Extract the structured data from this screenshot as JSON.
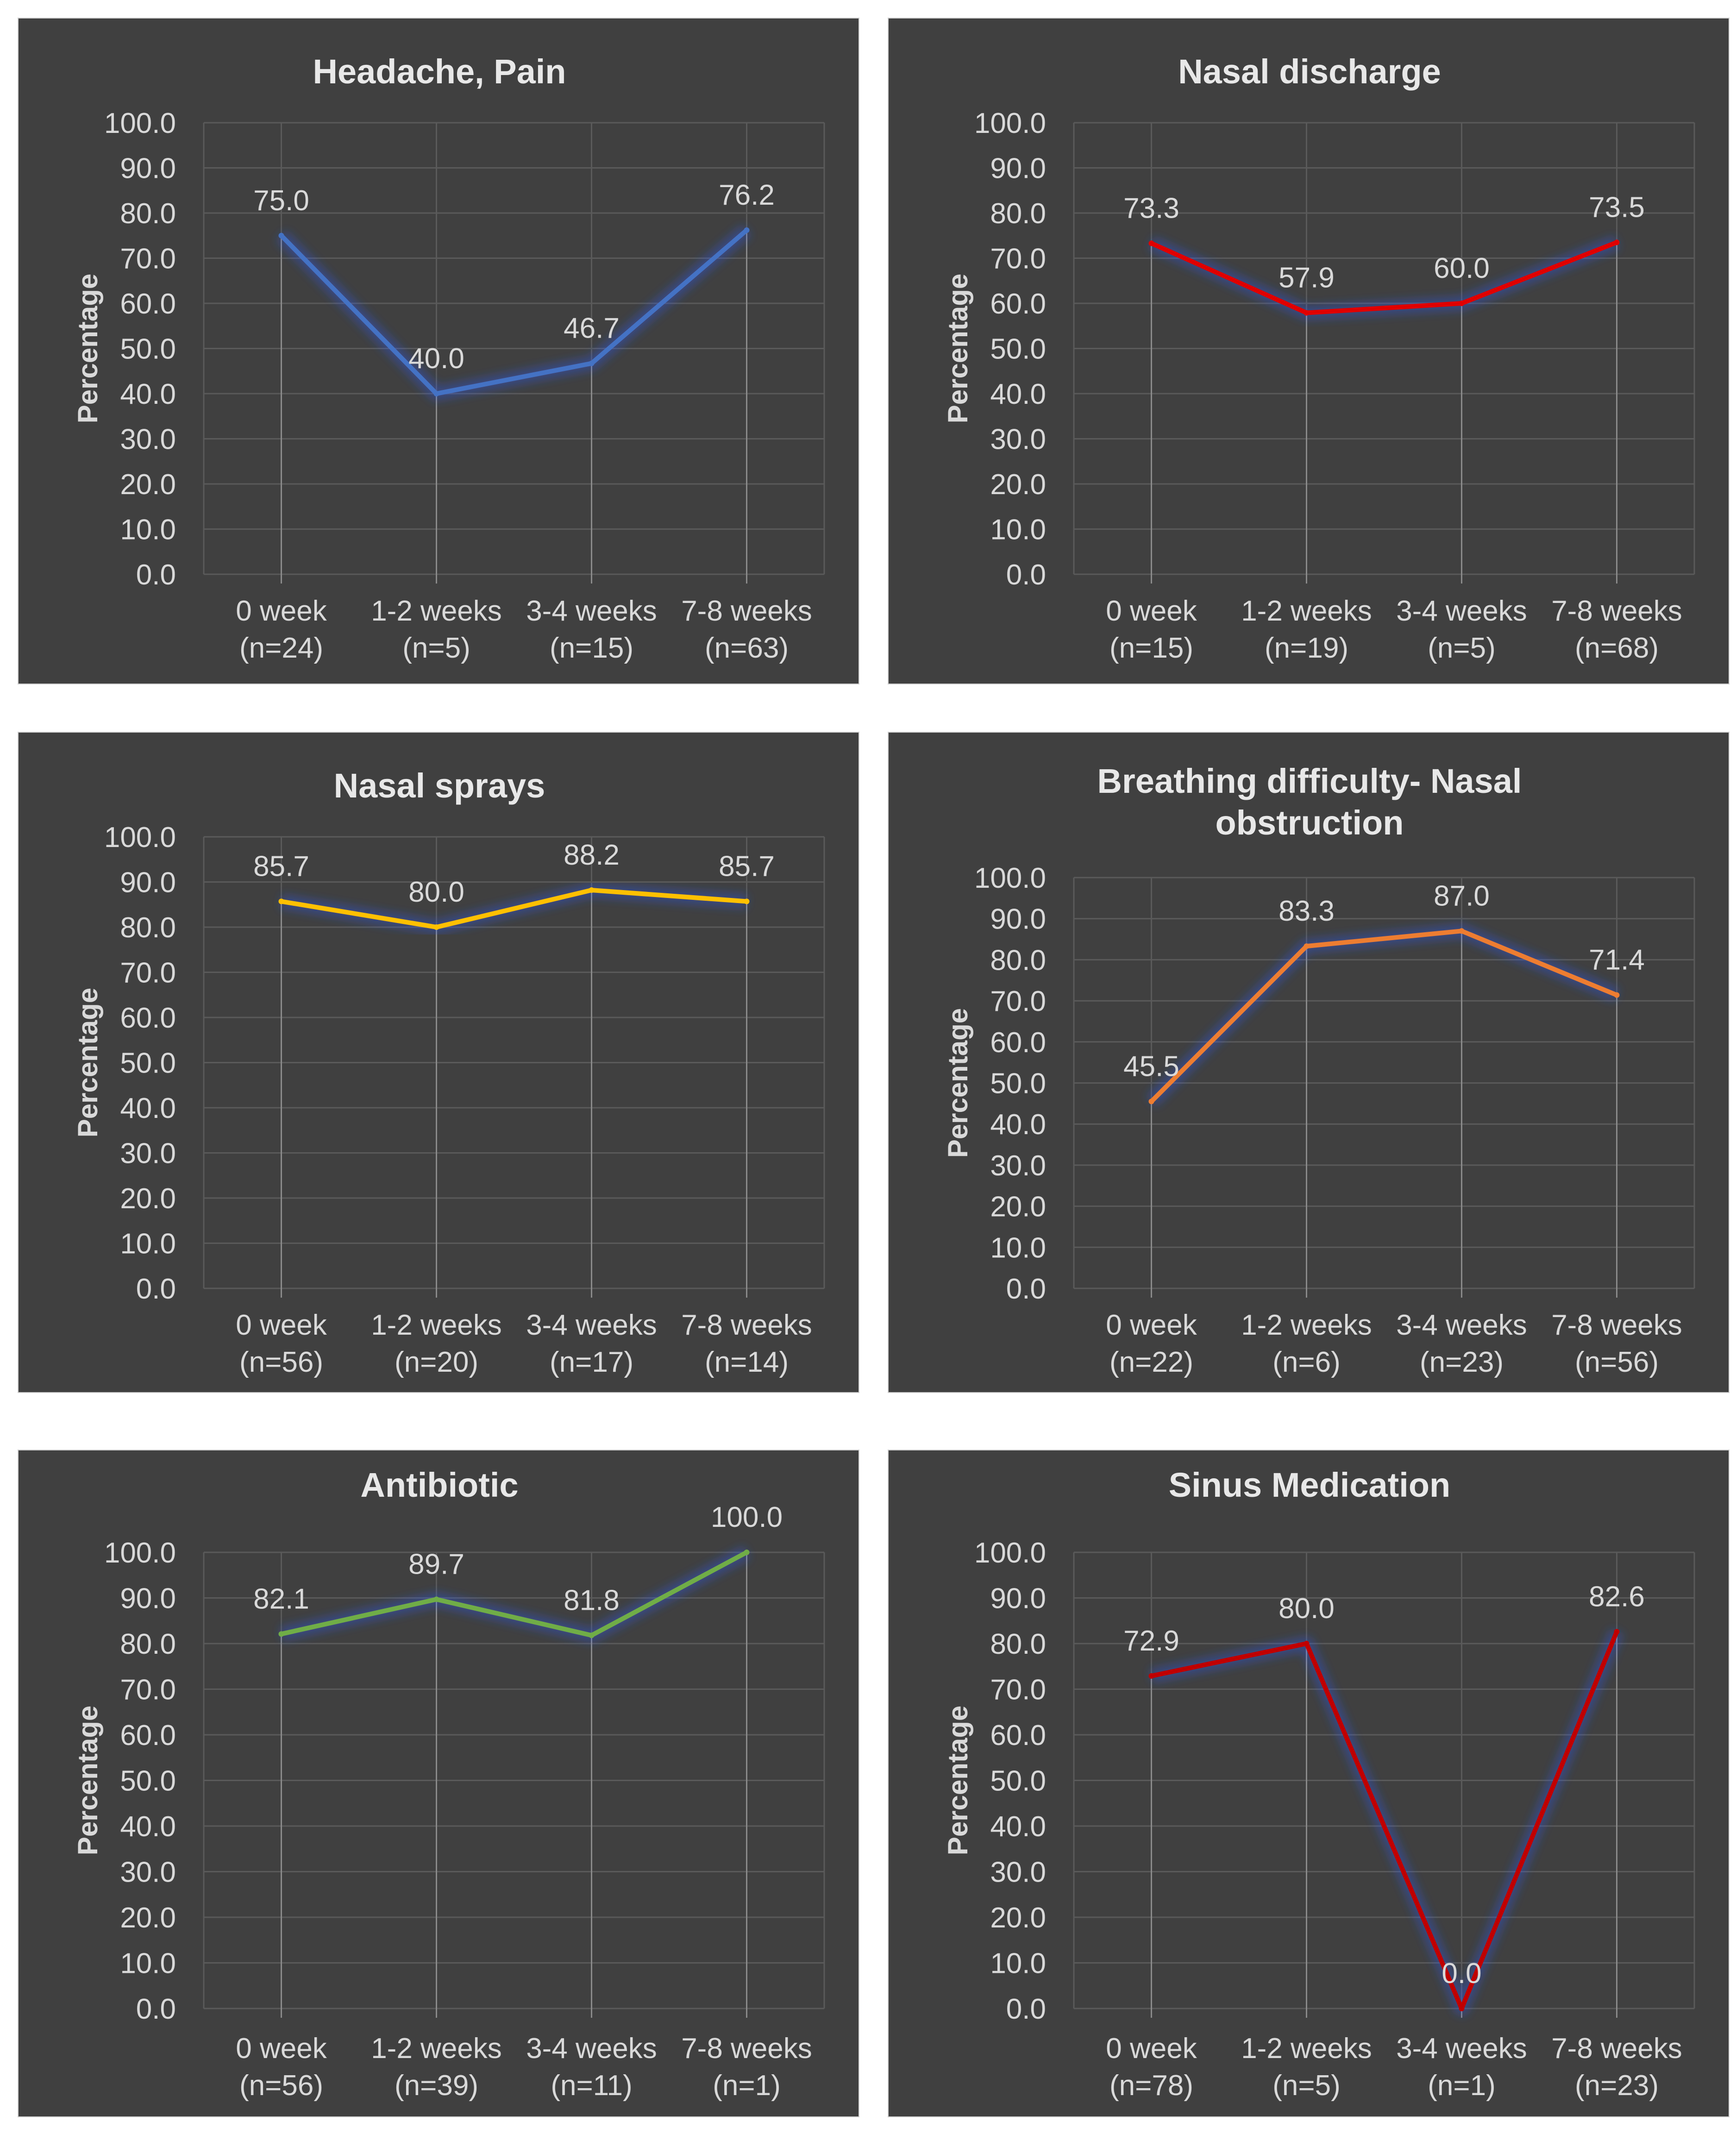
{
  "chart_data": [
    {
      "type": "line",
      "title": "Headache, Pain",
      "ylabel": "Percentage",
      "xlabel": "",
      "ylim": [
        0,
        100
      ],
      "yticks": [
        "100.0",
        "90.0",
        "80.0",
        "70.0",
        "60.0",
        "50.0",
        "40.0",
        "30.0",
        "20.0",
        "10.0",
        "0.0"
      ],
      "categories": [
        [
          "0 week",
          "(n=24)"
        ],
        [
          "1-2 weeks",
          "(n=5)"
        ],
        [
          "3-4 weeks",
          "(n=15)"
        ],
        [
          "7-8 weeks",
          "(n=63)"
        ]
      ],
      "values": [
        75.0,
        40.0,
        46.7,
        76.2
      ],
      "labels": [
        "75.0",
        "40.0",
        "46.7",
        "76.2"
      ],
      "color": "#4472c4"
    },
    {
      "type": "line",
      "title": "Nasal discharge",
      "ylabel": "Percentage",
      "xlabel": "",
      "ylim": [
        0,
        100
      ],
      "yticks": [
        "100.0",
        "90.0",
        "80.0",
        "70.0",
        "60.0",
        "50.0",
        "40.0",
        "30.0",
        "20.0",
        "10.0",
        "0.0"
      ],
      "categories": [
        [
          "0 week",
          "(n=15)"
        ],
        [
          "1-2 weeks",
          "(n=19)"
        ],
        [
          "3-4 weeks",
          "(n=5)"
        ],
        [
          "7-8 weeks",
          "(n=68)"
        ]
      ],
      "values": [
        73.3,
        57.9,
        60.0,
        73.5
      ],
      "labels": [
        "73.3",
        "57.9",
        "60.0",
        "73.5"
      ],
      "color": "#e00000"
    },
    {
      "type": "line",
      "title": "Nasal sprays",
      "ylabel": "Percentage",
      "xlabel": "",
      "ylim": [
        0,
        100
      ],
      "yticks": [
        "100.0",
        "90.0",
        "80.0",
        "70.0",
        "60.0",
        "50.0",
        "40.0",
        "30.0",
        "20.0",
        "10.0",
        "0.0"
      ],
      "categories": [
        [
          "0 week",
          "(n=56)"
        ],
        [
          "1-2 weeks",
          "(n=20)"
        ],
        [
          "3-4 weeks",
          "(n=17)"
        ],
        [
          "7-8 weeks",
          "(n=14)"
        ]
      ],
      "values": [
        85.7,
        80.0,
        88.2,
        85.7
      ],
      "labels": [
        "85.7",
        "80.0",
        "88.2",
        "85.7"
      ],
      "color": "#ffc000"
    },
    {
      "type": "line",
      "title": [
        "Breathing difficulty- Nasal",
        "obstruction"
      ],
      "ylabel": "Percentage",
      "xlabel": "",
      "ylim": [
        0,
        100
      ],
      "yticks": [
        "100.0",
        "90.0",
        "80.0",
        "70.0",
        "60.0",
        "50.0",
        "40.0",
        "30.0",
        "20.0",
        "10.0",
        "0.0"
      ],
      "categories": [
        [
          "0 week",
          "(n=22)"
        ],
        [
          "1-2 weeks",
          "(n=6)"
        ],
        [
          "3-4 weeks",
          "(n=23)"
        ],
        [
          "7-8 weeks",
          "(n=56)"
        ]
      ],
      "values": [
        45.5,
        83.3,
        87.0,
        71.4
      ],
      "labels": [
        "45.5",
        "83.3",
        "87.0",
        "71.4"
      ],
      "color": "#ed7d31"
    },
    {
      "type": "line",
      "title": "Antibiotic",
      "ylabel": "Percentage",
      "xlabel": "",
      "ylim": [
        0,
        100
      ],
      "yticks": [
        "100.0",
        "90.0",
        "80.0",
        "70.0",
        "60.0",
        "50.0",
        "40.0",
        "30.0",
        "20.0",
        "10.0",
        "0.0"
      ],
      "categories": [
        [
          "0 week",
          "(n=56)"
        ],
        [
          "1-2 weeks",
          "(n=39)"
        ],
        [
          "3-4 weeks",
          "(n=11)"
        ],
        [
          "7-8 weeks",
          "(n=1)"
        ]
      ],
      "values": [
        82.1,
        89.7,
        81.8,
        100.0
      ],
      "labels": [
        "82.1",
        "89.7",
        "81.8",
        "100.0"
      ],
      "color": "#70ad47"
    },
    {
      "type": "line",
      "title": "Sinus Medication",
      "ylabel": "Percentage",
      "xlabel": "",
      "ylim": [
        0,
        100
      ],
      "yticks": [
        "100.0",
        "90.0",
        "80.0",
        "70.0",
        "60.0",
        "50.0",
        "40.0",
        "30.0",
        "20.0",
        "10.0",
        "0.0"
      ],
      "categories": [
        [
          "0 week",
          "(n=78)"
        ],
        [
          "1-2 weeks",
          "(n=5)"
        ],
        [
          "3-4 weeks",
          "(n=1)"
        ],
        [
          "7-8 weeks",
          "(n=23)"
        ]
      ],
      "values": [
        72.9,
        80.0,
        0.0,
        82.6
      ],
      "labels": [
        "72.9",
        "80.0",
        "0.0",
        "82.6"
      ],
      "color": "#c00000"
    }
  ]
}
